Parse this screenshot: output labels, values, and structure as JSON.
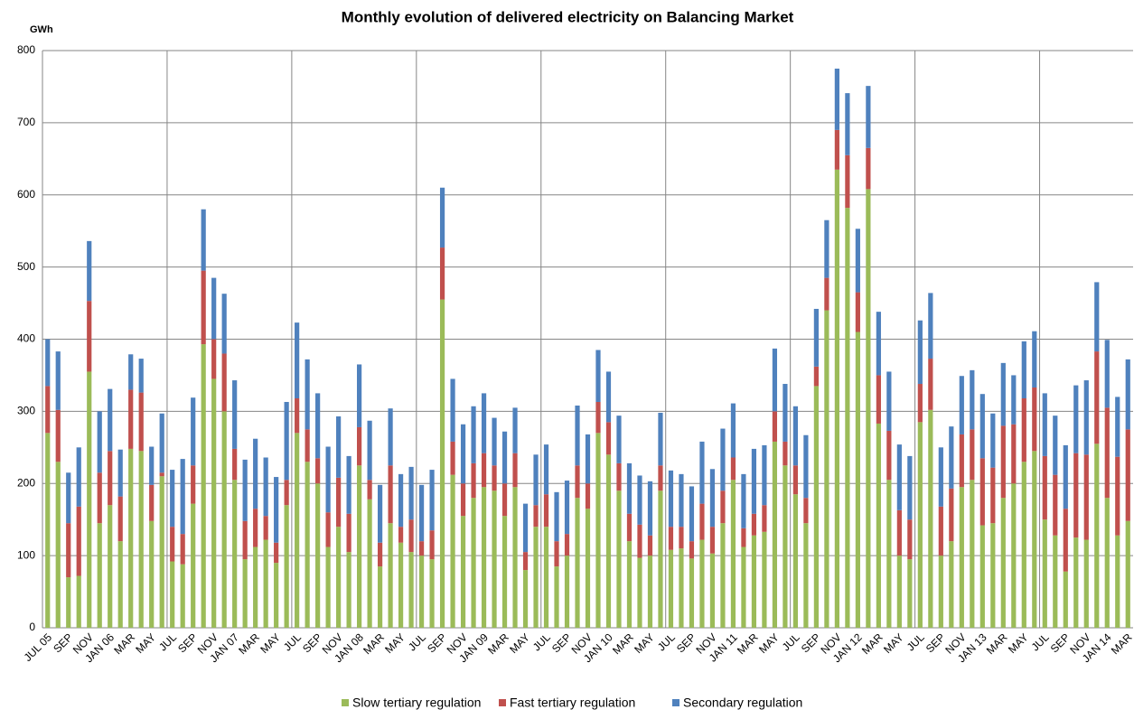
{
  "chart_data": {
    "type": "stacked_bar",
    "title": "Monthly evolution of delivered electricity on Balancing Market",
    "y_label": "GWh",
    "categories": [
      "JUL 05",
      null,
      "SEP",
      null,
      "NOV",
      null,
      "JAN 06",
      null,
      "MAR",
      null,
      "MAY",
      null,
      "JUL",
      null,
      "SEP",
      null,
      "NOV",
      null,
      "JAN 07",
      null,
      "MAR",
      null,
      "MAY",
      null,
      "JUL",
      null,
      "SEP",
      null,
      "NOV",
      null,
      "JAN 08",
      null,
      "MAR",
      null,
      "MAY",
      null,
      "JUL",
      null,
      "SEP",
      null,
      "NOV",
      null,
      "JAN 09",
      null,
      "MAR",
      null,
      "MAY",
      null,
      "JUL",
      null,
      "SEP",
      null,
      "NOV",
      null,
      "JAN 10",
      null,
      "MAR",
      null,
      "MAY",
      null,
      "JUL",
      null,
      "SEP",
      null,
      "NOV",
      null,
      "JAN 11",
      null,
      "MAR",
      null,
      "MAY",
      null,
      "JUL",
      null,
      "SEP",
      null,
      "NOV",
      null,
      "JAN 12",
      null,
      "MAR",
      null,
      "MAY",
      null,
      "JUL",
      null,
      "SEP",
      null,
      "NOV",
      null,
      "JAN 13",
      null,
      "MAR",
      null,
      "MAY",
      null,
      "JUL",
      null,
      "SEP",
      null,
      "NOV",
      null,
      "JAN 14",
      null,
      "MAR"
    ],
    "series": [
      {
        "name": "Slow tertiary regulation",
        "color": "#9bbb59",
        "values": [
          270,
          230,
          70,
          72,
          355,
          145,
          170,
          120,
          248,
          245,
          148,
          210,
          92,
          88,
          172,
          393,
          345,
          300,
          205,
          95,
          112,
          122,
          90,
          170,
          270,
          230,
          200,
          112,
          140,
          105,
          225,
          178,
          85,
          145,
          118,
          105,
          100,
          95,
          455,
          212,
          155,
          180,
          195,
          190,
          155,
          195,
          80,
          140,
          140,
          85,
          100,
          180,
          165,
          270,
          240,
          190,
          120,
          97,
          100,
          190,
          108,
          110,
          96,
          122,
          103,
          145,
          205,
          112,
          128,
          133,
          258,
          225,
          185,
          145,
          335,
          440,
          635,
          582,
          410,
          608,
          283,
          205,
          100,
          95,
          285,
          302,
          100,
          120,
          195,
          205,
          142,
          145,
          180,
          200,
          230,
          245,
          150,
          128,
          78,
          125,
          122,
          255,
          180,
          128,
          148
        ]
      },
      {
        "name": "Fast tertiary regulation",
        "color": "#c0504d",
        "values": [
          65,
          72,
          75,
          96,
          98,
          70,
          75,
          62,
          82,
          81,
          50,
          5,
          48,
          42,
          53,
          102,
          55,
          80,
          43,
          53,
          53,
          33,
          28,
          35,
          48,
          45,
          35,
          48,
          68,
          53,
          53,
          27,
          33,
          80,
          22,
          45,
          20,
          40,
          72,
          46,
          45,
          48,
          47,
          35,
          45,
          47,
          25,
          30,
          45,
          35,
          30,
          45,
          35,
          43,
          45,
          38,
          38,
          46,
          28,
          35,
          32,
          30,
          24,
          50,
          37,
          45,
          31,
          26,
          30,
          37,
          42,
          33,
          40,
          35,
          27,
          45,
          55,
          73,
          55,
          57,
          67,
          68,
          63,
          55,
          53,
          71,
          68,
          73,
          73,
          70,
          93,
          77,
          100,
          82,
          88,
          88,
          88,
          84,
          87,
          117,
          118,
          128,
          125,
          109,
          127
        ]
      },
      {
        "name": "Secondary regulation",
        "color": "#4f81bd",
        "values": [
          65,
          81,
          70,
          82,
          83,
          85,
          86,
          65,
          49,
          47,
          53,
          82,
          79,
          104,
          94,
          85,
          85,
          83,
          95,
          85,
          97,
          81,
          91,
          108,
          105,
          97,
          90,
          91,
          85,
          80,
          87,
          82,
          80,
          79,
          73,
          73,
          78,
          84,
          83,
          87,
          82,
          79,
          83,
          66,
          72,
          63,
          67,
          70,
          69,
          68,
          74,
          83,
          68,
          72,
          70,
          66,
          70,
          68,
          75,
          73,
          78,
          73,
          76,
          86,
          80,
          86,
          75,
          75,
          90,
          83,
          87,
          80,
          82,
          87,
          80,
          80,
          85,
          86,
          88,
          86,
          88,
          82,
          91,
          88,
          88,
          91,
          82,
          86,
          81,
          82,
          89,
          75,
          87,
          68,
          79,
          78,
          87,
          82,
          88,
          94,
          103,
          96,
          94,
          83,
          97
        ]
      }
    ],
    "ylim": [
      0,
      800
    ],
    "yticks": [
      0,
      100,
      200,
      300,
      400,
      500,
      600,
      700,
      800
    ],
    "grid": true,
    "legend": "bottom"
  }
}
